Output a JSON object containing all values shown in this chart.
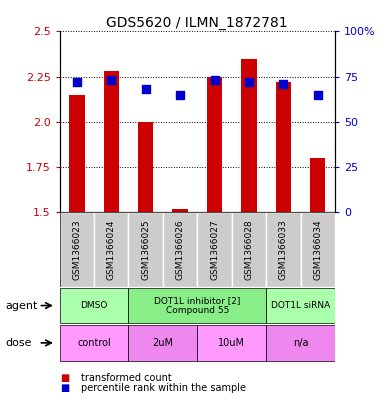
{
  "title": "GDS5620 / ILMN_1872781",
  "samples": [
    "GSM1366023",
    "GSM1366024",
    "GSM1366025",
    "GSM1366026",
    "GSM1366027",
    "GSM1366028",
    "GSM1366033",
    "GSM1366034"
  ],
  "bar_values": [
    2.15,
    2.28,
    2.0,
    1.52,
    2.25,
    2.35,
    2.22,
    1.8
  ],
  "dot_values": [
    72,
    73,
    68,
    65,
    73,
    72,
    71,
    65
  ],
  "ylim": [
    1.5,
    2.5
  ],
  "y2lim": [
    0,
    100
  ],
  "yticks": [
    1.5,
    1.75,
    2.0,
    2.25,
    2.5
  ],
  "y2ticks": [
    0,
    25,
    50,
    75,
    100
  ],
  "bar_color": "#cc0000",
  "dot_color": "#0000cc",
  "agent_groups": [
    {
      "label": "DMSO",
      "start": 0,
      "end": 2,
      "color": "#aaffaa"
    },
    {
      "label": "DOT1L inhibitor [2]\nCompound 55",
      "start": 2,
      "end": 6,
      "color": "#88ee88"
    },
    {
      "label": "DOT1L siRNA",
      "start": 6,
      "end": 8,
      "color": "#aaffaa"
    }
  ],
  "dose_groups": [
    {
      "label": "control",
      "start": 0,
      "end": 2,
      "color": "#ff99ff"
    },
    {
      "label": "2uM",
      "start": 2,
      "end": 4,
      "color": "#ee88ee"
    },
    {
      "label": "10uM",
      "start": 4,
      "end": 6,
      "color": "#ff99ff"
    },
    {
      "label": "n/a",
      "start": 6,
      "end": 8,
      "color": "#ee88ee"
    }
  ],
  "legend_items": [
    {
      "color": "#cc0000",
      "label": "transformed count"
    },
    {
      "color": "#0000cc",
      "label": "percentile rank within the sample"
    }
  ],
  "bar_width": 0.45,
  "dot_size": 30
}
